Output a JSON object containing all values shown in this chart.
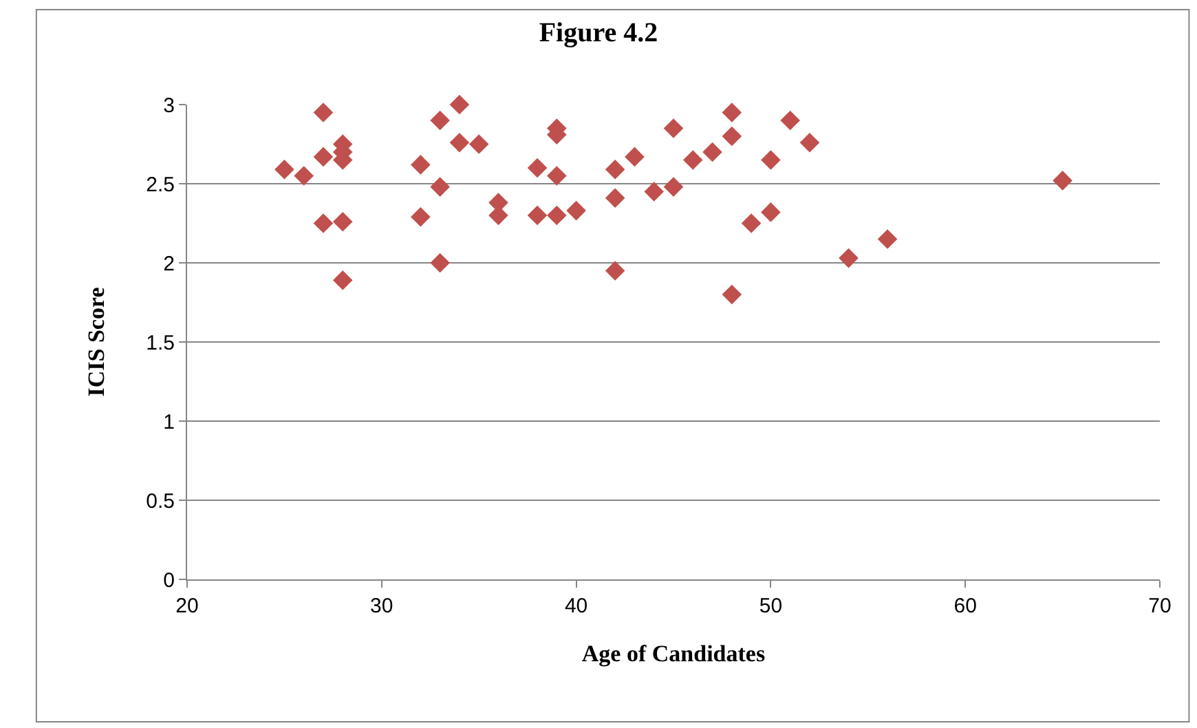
{
  "chart_data": {
    "type": "scatter",
    "title": "Figure 4.2",
    "xlabel": "Age of Candidates",
    "ylabel": "ICIS Score",
    "x": [
      25,
      26,
      27,
      27,
      27,
      28,
      28,
      28,
      28,
      28,
      32,
      32,
      33,
      33,
      33,
      34,
      34,
      35,
      36,
      36,
      38,
      38,
      39,
      39,
      39,
      39,
      40,
      42,
      42,
      42,
      43,
      44,
      45,
      45,
      46,
      47,
      48,
      48,
      48,
      49,
      50,
      50,
      51,
      52,
      54,
      56,
      65
    ],
    "series": [
      {
        "color": "#c0504d",
        "values": [
          2.59,
          2.55,
          2.95,
          2.67,
          2.25,
          2.75,
          2.7,
          2.65,
          2.26,
          1.89,
          2.62,
          2.29,
          2.9,
          2.48,
          2.0,
          3.0,
          2.76,
          2.75,
          2.38,
          2.3,
          2.6,
          2.3,
          2.85,
          2.81,
          2.55,
          2.3,
          2.33,
          2.59,
          2.41,
          1.95,
          2.67,
          2.45,
          2.85,
          2.48,
          2.65,
          2.7,
          2.95,
          2.8,
          1.8,
          2.25,
          2.65,
          2.32,
          2.9,
          2.76,
          2.03,
          2.15,
          2.52
        ]
      }
    ],
    "xlim": [
      20,
      70
    ],
    "xticks": [
      20,
      30,
      40,
      50,
      60,
      70
    ],
    "ylim": [
      0,
      3
    ],
    "yticks": [
      0,
      0.5,
      1,
      1.5,
      2,
      2.5,
      3
    ],
    "grid": "y",
    "marker": "diamond"
  }
}
